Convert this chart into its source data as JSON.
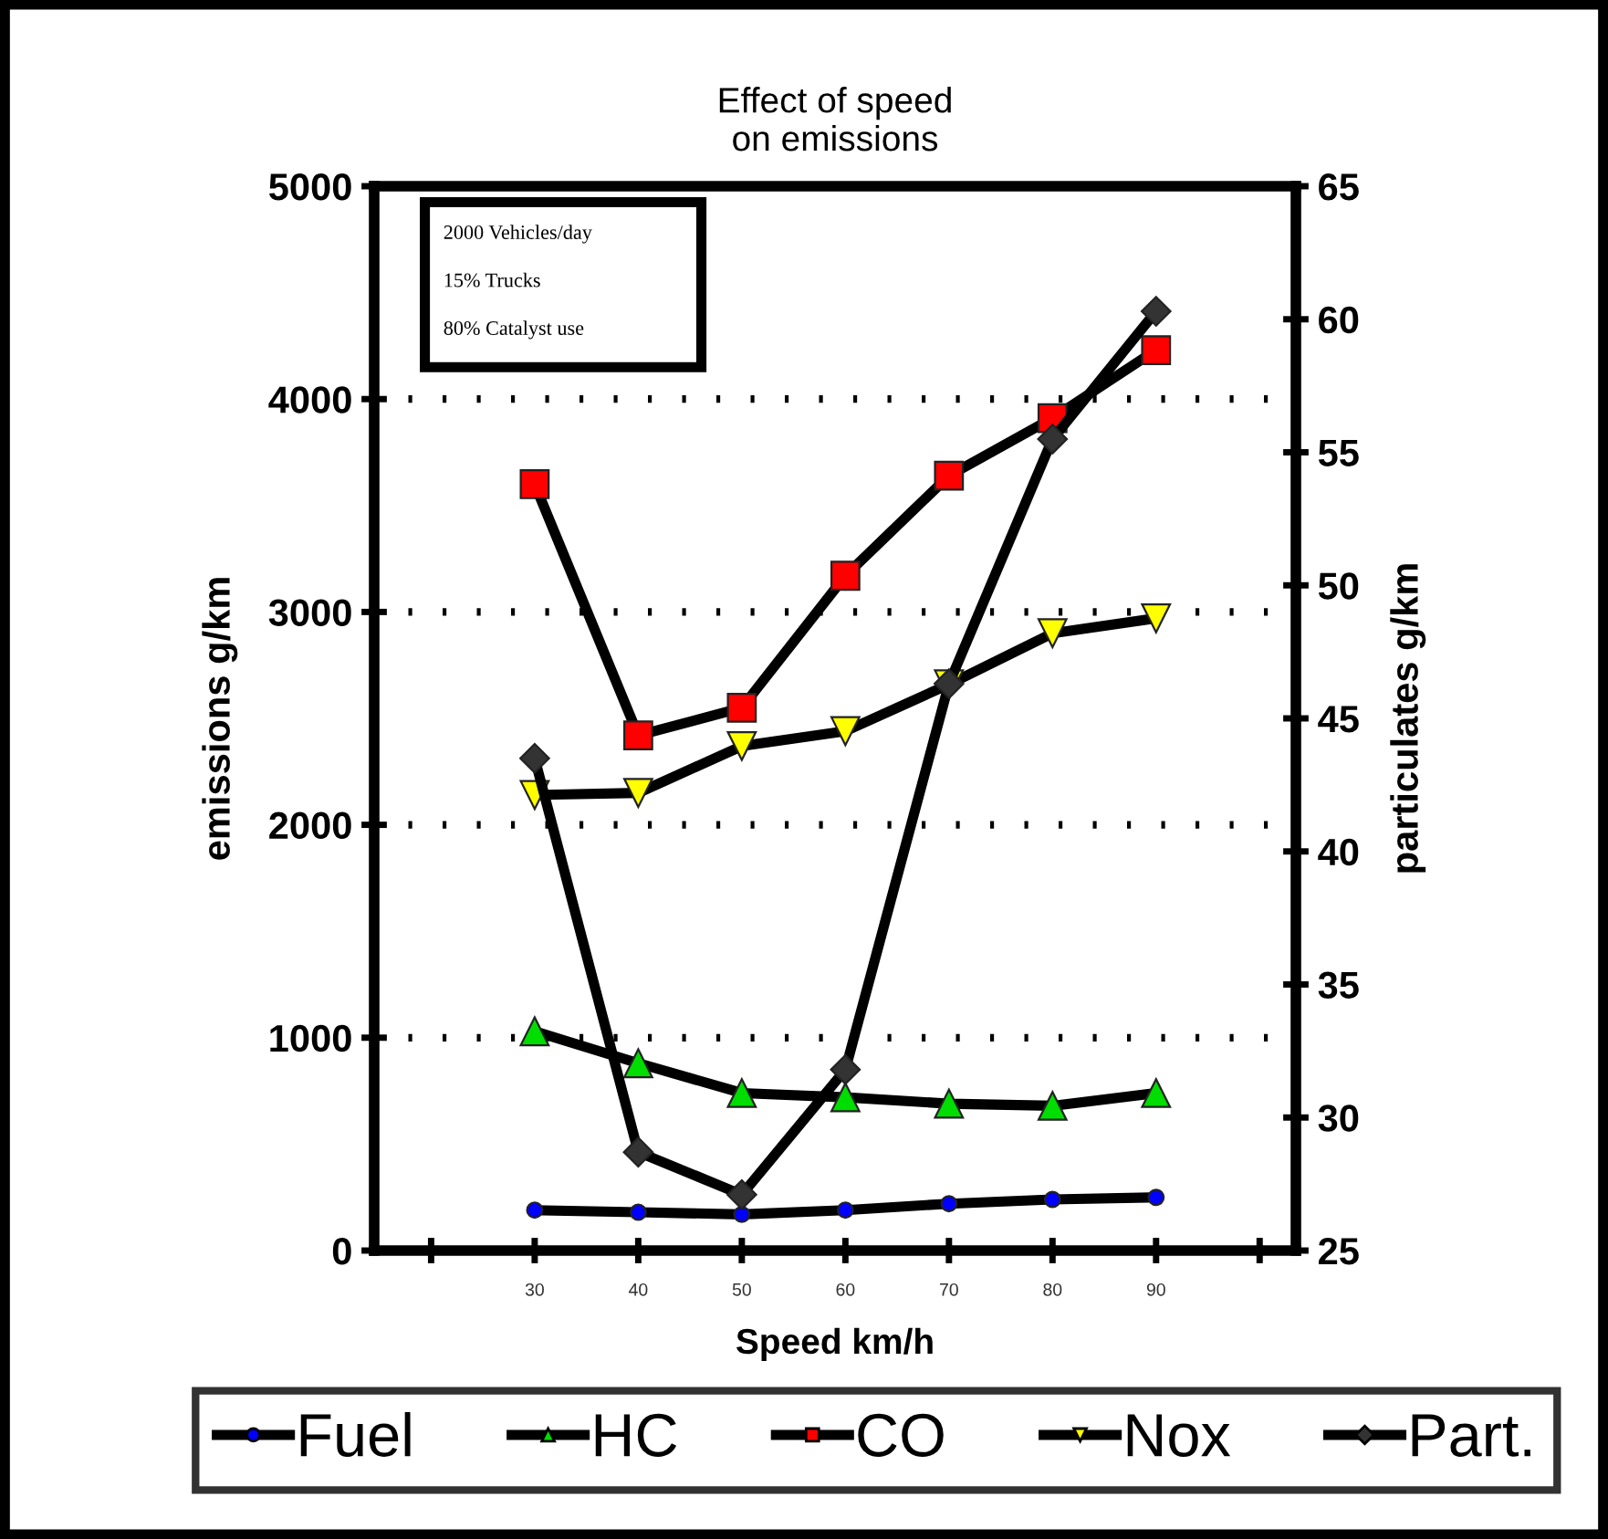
{
  "chart_data": {
    "type": "line",
    "title": "Effect of speed\non emissions",
    "xlabel": "Speed km/h",
    "ylabel": "emissions g/km",
    "y2label": "particulates g/km",
    "annotations": [
      "2000 Vehicles/day",
      "15% Trucks",
      "80% Catalyst use"
    ],
    "x": [
      30,
      40,
      50,
      60,
      70,
      80,
      90
    ],
    "xlim": [
      14.5,
      103.5
    ],
    "xticks": [
      {
        "value": 20,
        "label": null
      },
      30,
      40,
      50,
      60,
      70,
      80,
      90,
      {
        "value": 100,
        "label": null
      }
    ],
    "ylim": [
      0,
      5000
    ],
    "yticks": [
      0,
      1000,
      2000,
      3000,
      4000,
      5000
    ],
    "y2lim": [
      25,
      65
    ],
    "y2ticks": [
      25,
      30,
      35,
      40,
      45,
      50,
      55,
      60,
      65
    ],
    "grid": "y",
    "legend": "bottom",
    "series": [
      {
        "name": "Fuel",
        "color": "#0000ff",
        "marker": "circle",
        "values": [
          190,
          180,
          170,
          190,
          220,
          240,
          250
        ]
      },
      {
        "name": "HC",
        "color": "#00dd00",
        "marker": "triangle",
        "values": [
          1030,
          880,
          740,
          720,
          690,
          680,
          740
        ]
      },
      {
        "name": "CO",
        "color": "#ff0000",
        "marker": "square",
        "values": [
          3600,
          2420,
          2550,
          3170,
          3640,
          3910,
          4230
        ]
      },
      {
        "name": "Nox",
        "color": "#ffff00",
        "marker": "triangle_down",
        "values": [
          2140,
          2150,
          2370,
          2440,
          2660,
          2900,
          2970
        ]
      },
      {
        "name": "Part.",
        "color": "#333333",
        "marker": "diamond",
        "axis": "y2",
        "values": [
          43.5,
          28.7,
          27.1,
          31.8,
          46.3,
          55.5,
          60.3
        ]
      }
    ]
  }
}
